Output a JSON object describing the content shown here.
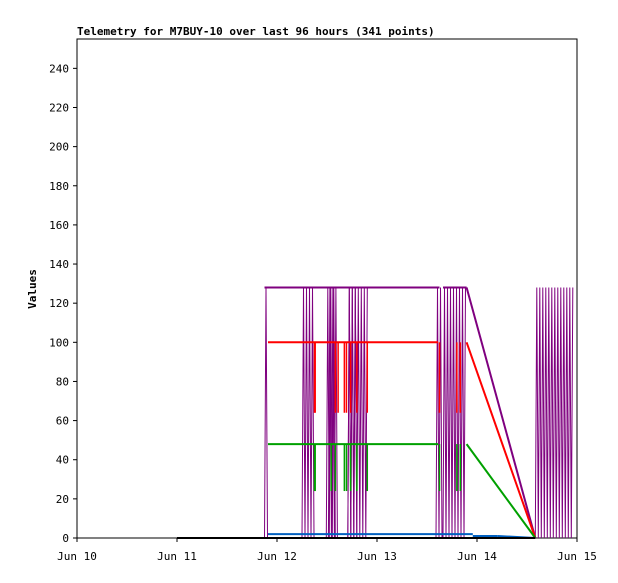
{
  "chart_data": {
    "type": "line",
    "title": "Telemetry for M7BUY-10 over last 96 hours (341 points)",
    "xlabel": "",
    "ylabel": "Values",
    "x_ticks": [
      "Jun 10",
      "Jun 11",
      "Jun 12",
      "Jun 13",
      "Jun 14",
      "Jun 15"
    ],
    "xlim": [
      "Jun 10",
      "Jun 15"
    ],
    "y_ticks": [
      0,
      20,
      40,
      60,
      80,
      100,
      120,
      140,
      160,
      180,
      200,
      220,
      240
    ],
    "ylim": [
      0,
      255
    ],
    "grid": false,
    "legend": "none",
    "series": [
      {
        "color": "#7f007f",
        "style": "dense-oscillation",
        "low": 0,
        "high": 128,
        "segments": [
          [
            "Jun 11 21:00",
            "Jun 11 21:50"
          ],
          [
            "Jun 11 22:00",
            "Jun 11 22:20"
          ],
          [
            "Jun 12 06:00",
            "Jun 12 09:00"
          ],
          [
            "Jun 12 11:50",
            "Jun 12 14:00"
          ],
          [
            "Jun 12 12:20",
            "Jun 12 14:40"
          ],
          [
            "Jun 12 17:00",
            "Jun 12 19:10"
          ],
          [
            "Jun 12 17:00",
            "Jun 12 22:00"
          ],
          [
            "Jun 13 14:10",
            "Jun 13 15:40"
          ],
          [
            "Jun 13 15:40",
            "Jun 13 15:50"
          ],
          [
            "Jun 13 15:50",
            "Jun 13 21:30"
          ],
          [
            "Jun 14 14:00",
            "Jun 14 23:00"
          ]
        ],
        "lines": [
          [
            [
              "Jun 11 21:00",
              128
            ],
            [
              "Jun 13 15:00",
              128
            ]
          ],
          [
            [
              "Jun 13 15:50",
              128
            ],
            [
              "Jun 13 21:30",
              128
            ]
          ],
          [
            [
              "Jun 13 21:30",
              128
            ],
            [
              "Jun 14 14:00",
              0
            ]
          ]
        ]
      },
      {
        "color": "#ff0000",
        "low": 64,
        "high": 100,
        "lines": [
          [
            [
              "Jun 11 21:50",
              100
            ],
            [
              "Jun 13 14:40",
              100
            ]
          ],
          [
            [
              "Jun 13 21:30",
              100
            ],
            [
              "Jun 14 14:00",
              0
            ]
          ]
        ],
        "spikes": [
          "Jun 12 09:00",
          "Jun 12 09:10",
          "Jun 12 14:00",
          "Jun 12 14:40",
          "Jun 12 16:10",
          "Jun 12 16:40",
          "Jun 12 17:40",
          "Jun 12 19:10",
          "Jun 12 21:40",
          "Jun 13 15:00",
          "Jun 13 19:10",
          "Jun 13 20:00"
        ]
      },
      {
        "color": "#00a000",
        "low": 24,
        "high": 48,
        "lines": [
          [
            [
              "Jun 11 21:50",
              48
            ],
            [
              "Jun 13 14:40",
              48
            ]
          ],
          [
            [
              "Jun 13 21:30",
              48
            ],
            [
              "Jun 14 14:00",
              0
            ]
          ]
        ],
        "spikes": [
          "Jun 12 09:00",
          "Jun 12 09:10",
          "Jun 12 13:00",
          "Jun 12 14:00",
          "Jun 12 16:10",
          "Jun 12 16:40",
          "Jun 12 17:40",
          "Jun 12 19:10",
          "Jun 12 21:40",
          "Jun 13 15:00",
          "Jun 13 19:10",
          "Jun 13 20:00"
        ]
      },
      {
        "color": "#0060c0",
        "lines": [
          [
            [
              "Jun 11 21:50",
              2
            ],
            [
              "Jun 13 23:00",
              2
            ]
          ],
          [
            [
              "Jun 13 23:00",
              1
            ],
            [
              "Jun 14 05:00",
              1
            ]
          ],
          [
            [
              "Jun 14 05:00",
              1
            ],
            [
              "Jun 14 14:00",
              0
            ]
          ]
        ]
      },
      {
        "color": "#000000",
        "lines": [
          [
            [
              "Jun 11 00:00",
              0
            ],
            [
              "Jun 14 14:00",
              0
            ]
          ]
        ]
      }
    ]
  }
}
